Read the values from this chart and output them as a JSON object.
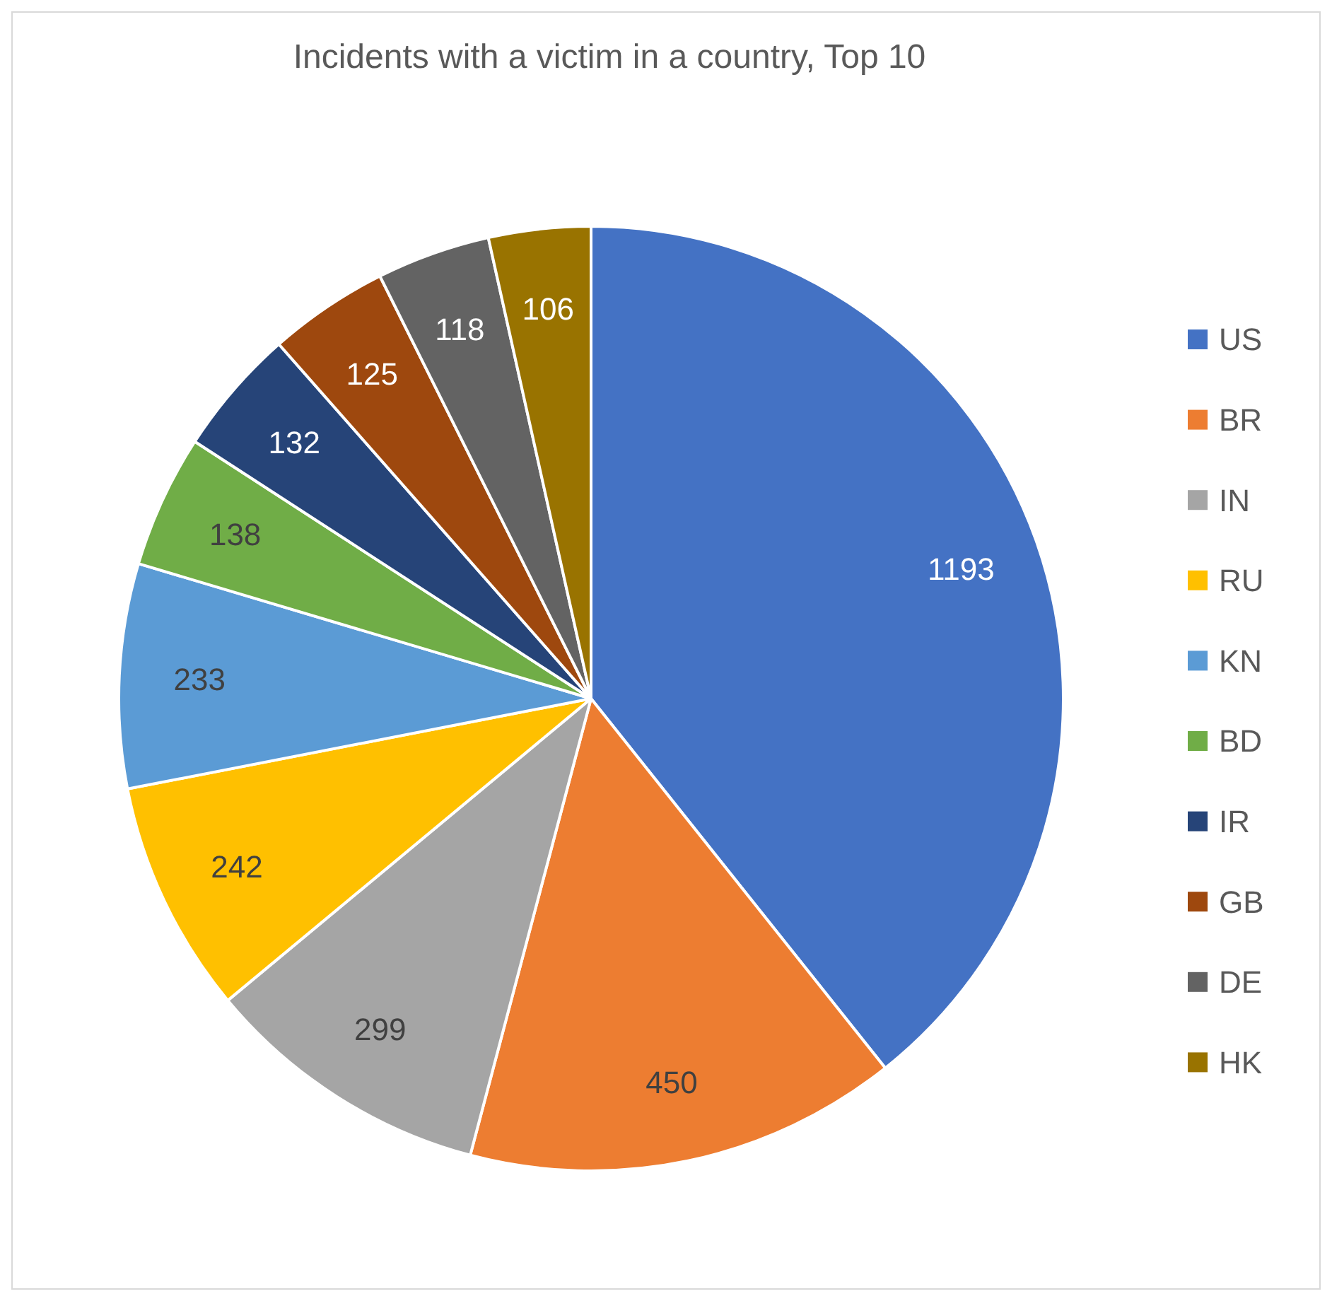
{
  "chart_data": {
    "type": "pie",
    "title": "Incidents with a victim in a country, Top 10",
    "categories": [
      "US",
      "BR",
      "IN",
      "RU",
      "KN",
      "BD",
      "IR",
      "GB",
      "DE",
      "HK"
    ],
    "values": [
      1193,
      450,
      299,
      242,
      233,
      138,
      132,
      125,
      118,
      106
    ],
    "colors": [
      "#4472c4",
      "#ed7d31",
      "#a5a5a5",
      "#ffc000",
      "#5b9bd5",
      "#70ad47",
      "#264478",
      "#9e480e",
      "#636363",
      "#997300"
    ],
    "data_labels": true,
    "legend": "right"
  }
}
